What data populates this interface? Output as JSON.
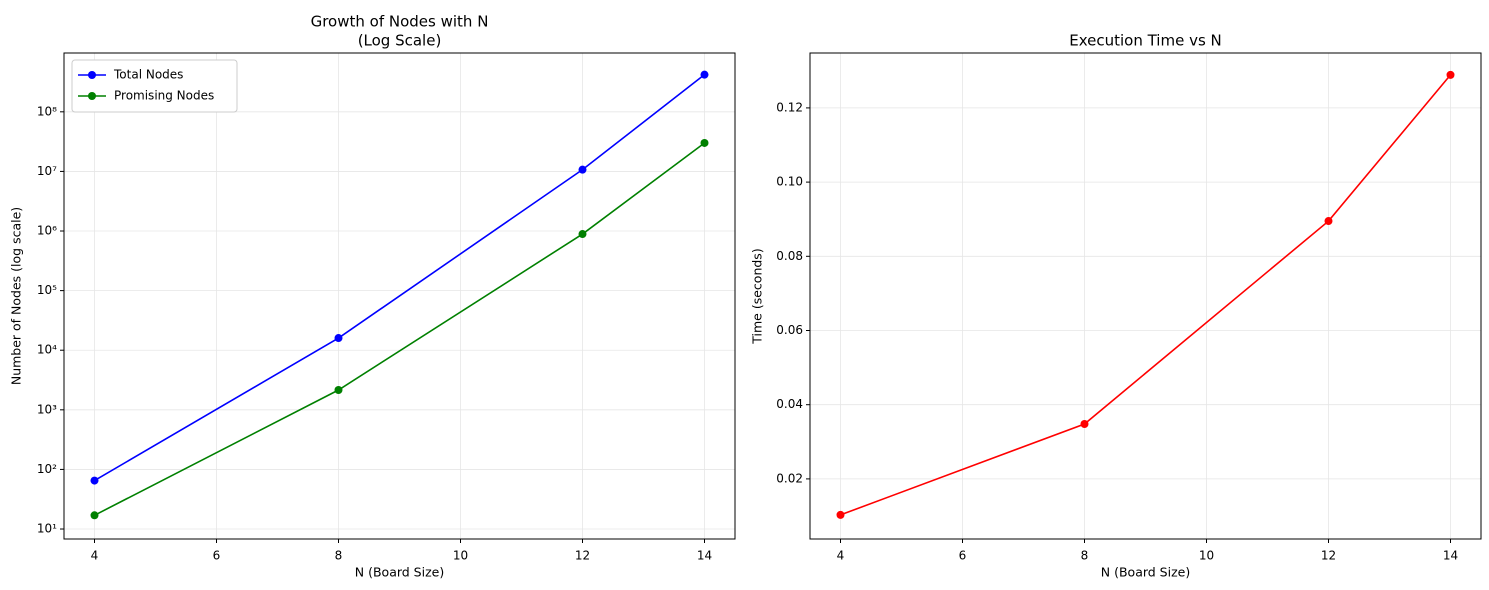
{
  "chart_data": [
    {
      "type": "line",
      "title": [
        "Growth of Nodes with N",
        "(Log Scale)"
      ],
      "xlabel": "N (Board Size)",
      "ylabel": "Number of Nodes (log scale)",
      "x": [
        4,
        8,
        12,
        14
      ],
      "series": [
        {
          "name": "Total Nodes",
          "color": "#0000ff",
          "values": [
            65,
            16000,
            10700000,
            420000000
          ]
        },
        {
          "name": "Promising Nodes",
          "color": "#008000",
          "values": [
            17,
            2150,
            890000,
            30000000
          ]
        }
      ],
      "xlim": [
        3.5,
        14.5
      ],
      "xticks": [
        4,
        6,
        8,
        10,
        12,
        14
      ],
      "ylim": [
        6.8,
        970000000
      ],
      "yscale": "log",
      "yticks": [
        {
          "value": 10,
          "label": "10¹"
        },
        {
          "value": 100,
          "label": "10²"
        },
        {
          "value": 1000,
          "label": "10³"
        },
        {
          "value": 10000,
          "label": "10⁴"
        },
        {
          "value": 100000,
          "label": "10⁵"
        },
        {
          "value": 1000000,
          "label": "10⁶"
        },
        {
          "value": 10000000,
          "label": "10⁷"
        },
        {
          "value": 100000000,
          "label": "10⁸"
        }
      ],
      "grid": true,
      "legend": "upper left"
    },
    {
      "type": "line",
      "title": [
        "Execution Time vs N"
      ],
      "xlabel": "N (Board Size)",
      "ylabel": "Time (seconds)",
      "x": [
        4,
        8,
        12,
        14
      ],
      "series": [
        {
          "color": "#ff0000",
          "values": [
            0.0103,
            0.0348,
            0.0895,
            0.1289
          ]
        }
      ],
      "xlim": [
        3.5,
        14.5
      ],
      "xticks": [
        4,
        6,
        8,
        10,
        12,
        14
      ],
      "ylim": [
        0.0038,
        0.1348
      ],
      "yticks": [
        0.02,
        0.04,
        0.06,
        0.08,
        {
          "value": 0.1,
          "label": "0.10"
        },
        0.12
      ],
      "grid": true
    }
  ]
}
